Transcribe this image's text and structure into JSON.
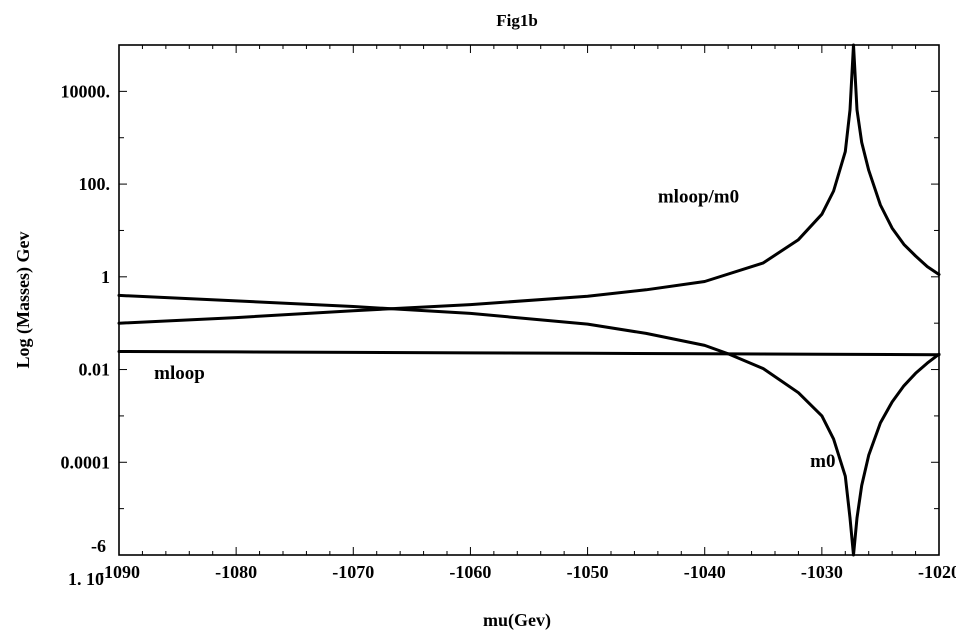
{
  "chart_data": {
    "type": "line",
    "title": "Fig1b",
    "xlabel": "mu(Gev)",
    "ylabel": "Log (Masses) Gev",
    "xlim": [
      -1090,
      -1020
    ],
    "ylim_log10": [
      -6,
      5
    ],
    "y_scale": "log",
    "grid": false,
    "x_ticks": [
      {
        "value": -1090,
        "label": "-1090"
      },
      {
        "value": -1080,
        "label": "-1080"
      },
      {
        "value": -1070,
        "label": "-1070"
      },
      {
        "value": -1060,
        "label": "-1060"
      },
      {
        "value": -1050,
        "label": "-1050"
      },
      {
        "value": -1040,
        "label": "-1040"
      },
      {
        "value": -1030,
        "label": "-1030"
      },
      {
        "value": -1020,
        "label": "-1020"
      }
    ],
    "y_ticks": [
      {
        "log10": 4,
        "label": "10000."
      },
      {
        "log10": 2,
        "label": "100."
      },
      {
        "log10": 0,
        "label": "1"
      },
      {
        "log10": -2,
        "label": "0.01"
      },
      {
        "log10": -4,
        "label": "0.0001"
      },
      {
        "log10": -6,
        "label": "1. 10",
        "exponent": "-6"
      }
    ],
    "series": [
      {
        "name": "mloop",
        "x": [
          -1090,
          -1080,
          -1070,
          -1060,
          -1050,
          -1040,
          -1030,
          -1020
        ],
        "log10": [
          -1.61,
          -1.62,
          -1.63,
          -1.64,
          -1.65,
          -1.66,
          -1.67,
          -1.68
        ]
      },
      {
        "name": "m0",
        "x": [
          -1090,
          -1080,
          -1070,
          -1060,
          -1050,
          -1045,
          -1040,
          -1038,
          -1035,
          -1032,
          -1030,
          -1029,
          -1028,
          -1027.6,
          -1027.3,
          -1027.0,
          -1026.6,
          -1026,
          -1025,
          -1024,
          -1023,
          -1022,
          -1021,
          -1020
        ],
        "log10": [
          -0.4,
          -0.52,
          -0.64,
          -0.79,
          -1.02,
          -1.22,
          -1.48,
          -1.66,
          -1.98,
          -2.5,
          -3.0,
          -3.5,
          -4.3,
          -5.2,
          -6.5,
          -5.2,
          -4.5,
          -3.85,
          -3.15,
          -2.7,
          -2.35,
          -2.08,
          -1.86,
          -1.67
        ]
      },
      {
        "name": "mloop/m0",
        "x": [
          -1090,
          -1080,
          -1070,
          -1060,
          -1050,
          -1045,
          -1040,
          -1035,
          -1032,
          -1030,
          -1029,
          -1028,
          -1027.6,
          -1027.3,
          -1027.0,
          -1026.6,
          -1026,
          -1025,
          -1024,
          -1023,
          -1022,
          -1021,
          -1020
        ],
        "log10": [
          -1.0,
          -0.88,
          -0.73,
          -0.6,
          -0.42,
          -0.28,
          -0.1,
          0.3,
          0.8,
          1.35,
          1.85,
          2.7,
          3.6,
          5.1,
          3.6,
          2.9,
          2.3,
          1.55,
          1.05,
          0.7,
          0.45,
          0.22,
          0.05
        ]
      }
    ],
    "annotations": [
      {
        "text": "mloop/m0",
        "x": -1044,
        "log10": 1.6
      },
      {
        "text": "mloop",
        "x": -1087,
        "log10": -2.2
      },
      {
        "text": "m0",
        "x": -1031,
        "log10": -4.1
      }
    ]
  }
}
